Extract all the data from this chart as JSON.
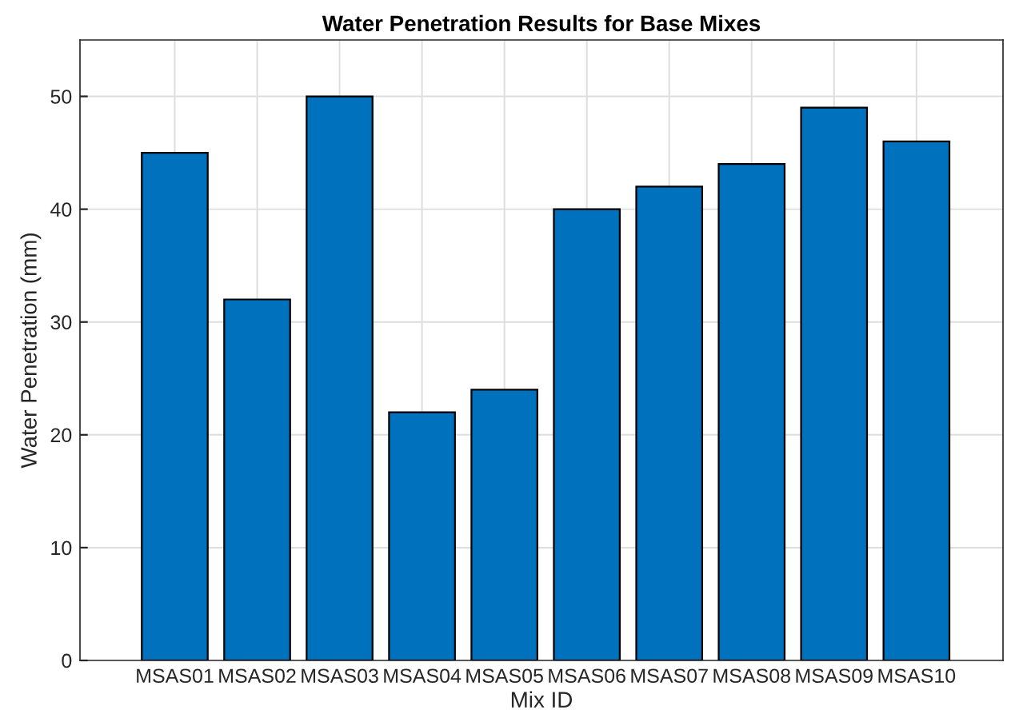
{
  "chart_data": {
    "type": "bar",
    "title": "Water Penetration Results for Base Mixes",
    "xlabel": "Mix ID",
    "ylabel": "Water Penetration (mm)",
    "categories": [
      "MSAS01",
      "MSAS02",
      "MSAS03",
      "MSAS04",
      "MSAS05",
      "MSAS06",
      "MSAS07",
      "MSAS08",
      "MSAS09",
      "MSAS10"
    ],
    "values": [
      45,
      32,
      50,
      22,
      24,
      40,
      42,
      44,
      49,
      46
    ],
    "color": "#0072bd",
    "ylim": [
      0,
      55
    ],
    "yticks": [
      0,
      10,
      20,
      30,
      40,
      50
    ],
    "grid": true
  }
}
